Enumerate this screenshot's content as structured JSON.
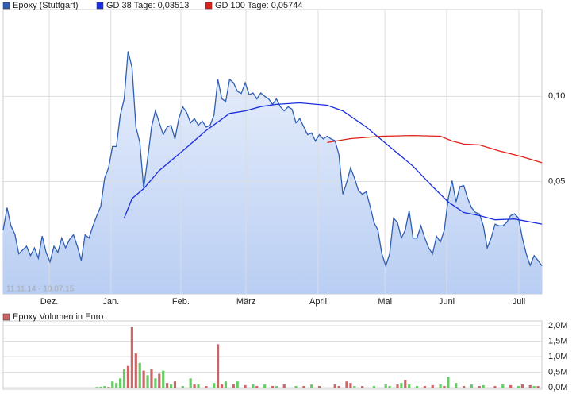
{
  "chart_data": [
    {
      "type": "line",
      "annotation": "11.11.14 - 10.07.15",
      "xlim": [
        0,
        138
      ],
      "xticks": [
        {
          "value": 11.8,
          "label": "Dez."
        },
        {
          "value": 27.6,
          "label": "Jan."
        },
        {
          "value": 45.5,
          "label": "Feb."
        },
        {
          "value": 62.2,
          "label": "März"
        },
        {
          "value": 80.7,
          "label": "April"
        },
        {
          "value": 97.8,
          "label": "Mai"
        },
        {
          "value": 113.6,
          "label": "Juni"
        },
        {
          "value": 132.1,
          "label": "Juli"
        }
      ],
      "ylim": [
        -0.016,
        0.151
      ],
      "yticks": [
        {
          "value": 0.05,
          "label": "0,05"
        },
        {
          "value": 0.1,
          "label": "0,10"
        }
      ],
      "grid": true,
      "series": [
        {
          "name": "Epoxy (Stuttgart)",
          "color": "#2f5fb3",
          "fill": true,
          "values": [
            0.0215,
            0.0346,
            0.024,
            0.019,
            0.0075,
            0.0098,
            0.012,
            0.0065,
            0.011,
            0.005,
            0.018,
            0.0084,
            0.0028,
            0.012,
            0.0084,
            0.0168,
            0.011,
            0.0159,
            0.0187,
            0.012,
            0.0037,
            0.0187,
            0.0168,
            0.024,
            0.03,
            0.0355,
            0.052,
            0.058,
            0.0706,
            0.0706,
            0.089,
            0.0985,
            0.1265,
            0.117,
            0.082,
            0.073,
            0.046,
            0.0636,
            0.082,
            0.0916,
            0.0845,
            0.0775,
            0.082,
            0.083,
            0.075,
            0.087,
            0.0939,
            0.0906,
            0.0845,
            0.087,
            0.083,
            0.0855,
            0.082,
            0.083,
            0.089,
            0.11,
            0.0986,
            0.097,
            0.11,
            0.108,
            0.103,
            0.1017,
            0.108,
            0.101,
            0.102,
            0.0985,
            0.102,
            0.1,
            0.0985,
            0.0953,
            0.0985,
            0.0939,
            0.0915,
            0.0939,
            0.0925,
            0.0845,
            0.087,
            0.082,
            0.0775,
            0.0785,
            0.0738,
            0.0775,
            0.075,
            0.0766,
            0.075,
            0.074,
            0.066,
            0.0425,
            0.0495,
            0.058,
            0.052,
            0.0448,
            0.0425,
            0.044,
            0.0355,
            0.026,
            0.0215,
            0.0075,
            0.0005,
            0.0075,
            0.0285,
            0.026,
            0.0168,
            0.0215,
            0.033,
            0.0168,
            0.0168,
            0.024,
            0.0168,
            0.011,
            0.0075,
            0.0178,
            0.0145,
            0.0215,
            0.04,
            0.0505,
            0.038,
            0.047,
            0.0476,
            0.04,
            0.0346,
            0.0318,
            0.031,
            0.024,
            0.011,
            0.0168,
            0.025,
            0.024,
            0.024,
            0.026,
            0.03,
            0.031,
            0.0285,
            0.0168,
            0.0075,
            0.0008,
            0.0065,
            0.0037,
            0.0005
          ]
        },
        {
          "name": "GD 38 Tage: 0,03513",
          "color": "#1a2de0",
          "x": [
            31,
            33,
            36,
            40,
            46,
            52,
            58,
            62,
            66,
            70,
            76,
            83,
            87,
            93,
            99,
            105,
            110,
            114,
            118,
            122,
            126,
            131,
            138
          ],
          "values": [
            0.0285,
            0.04,
            0.0458,
            0.0565,
            0.068,
            0.08,
            0.09,
            0.0915,
            0.094,
            0.0953,
            0.0962,
            0.0948,
            0.0915,
            0.082,
            0.0705,
            0.059,
            0.047,
            0.038,
            0.0318,
            0.03,
            0.0275,
            0.028,
            0.025
          ]
        },
        {
          "name": "GD 100 Tage: 0,05744",
          "color": "#e0201a",
          "x": [
            83,
            89,
            97,
            105,
            112,
            115,
            118,
            122,
            127,
            133,
            138
          ],
          "values": [
            0.0729,
            0.0752,
            0.0766,
            0.077,
            0.0766,
            0.0738,
            0.072,
            0.0715,
            0.068,
            0.0645,
            0.061
          ]
        }
      ]
    },
    {
      "type": "bar",
      "xlim": [
        0,
        138
      ],
      "ylim": [
        0,
        2000000
      ],
      "yticks": [
        {
          "value": 0,
          "label": "0,0M"
        },
        {
          "value": 500000,
          "label": "0,5M"
        },
        {
          "value": 1000000,
          "label": "1,0M"
        },
        {
          "value": 1500000,
          "label": "1,5M"
        },
        {
          "value": 2000000,
          "label": "2,0M"
        }
      ],
      "grid": true,
      "series": [
        {
          "name": "Epoxy Volumen in Euro",
          "color": "#cc6666",
          "x": [
            24,
            25,
            26,
            27,
            28,
            29,
            30,
            31,
            32,
            33,
            34,
            35,
            36,
            37,
            38,
            39,
            40,
            41,
            42,
            43,
            44,
            46,
            48,
            49,
            50,
            52,
            54,
            55,
            56,
            57,
            59,
            60,
            62,
            64,
            65,
            67,
            69,
            70,
            72,
            75,
            77,
            79,
            81,
            85,
            86,
            88,
            89,
            90,
            92,
            95,
            98,
            99,
            101,
            102,
            103,
            104,
            106,
            108,
            110,
            112,
            113,
            114,
            116,
            118,
            120,
            122,
            123,
            126,
            128,
            130,
            132,
            133,
            135,
            136,
            137
          ],
          "values": [
            20000,
            30000,
            50000,
            20000,
            200000,
            150000,
            300000,
            600000,
            700000,
            1950000,
            1100000,
            800000,
            550000,
            400000,
            600000,
            300000,
            450000,
            550000,
            150000,
            100000,
            200000,
            50000,
            300000,
            100000,
            100000,
            50000,
            150000,
            1400000,
            100000,
            200000,
            100000,
            200000,
            80000,
            100000,
            50000,
            100000,
            50000,
            50000,
            100000,
            50000,
            50000,
            100000,
            50000,
            100000,
            50000,
            200000,
            150000,
            50000,
            50000,
            50000,
            100000,
            50000,
            100000,
            150000,
            250000,
            100000,
            50000,
            50000,
            80000,
            100000,
            50000,
            350000,
            150000,
            50000,
            100000,
            50000,
            80000,
            50000,
            100000,
            80000,
            50000,
            100000,
            80000,
            50000,
            50000
          ],
          "bar_colors": [
            "#66cc66",
            "#66cc66",
            "#66cc66",
            "#cc6666",
            "#66cc66",
            "#66cc66",
            "#66cc66",
            "#66cc66",
            "#cc6666",
            "#cc6666",
            "#cc6666",
            "#66cc66",
            "#cc6666",
            "#66cc66",
            "#cc6666",
            "#66cc66",
            "#cc6666",
            "#66cc66",
            "#cc6666",
            "#66cc66",
            "#cc6666",
            "#66cc66",
            "#66cc66",
            "#cc6666",
            "#66cc66",
            "#cc6666",
            "#66cc66",
            "#cc6666",
            "#cc6666",
            "#66cc66",
            "#cc6666",
            "#66cc66",
            "#cc6666",
            "#66cc66",
            "#cc6666",
            "#66cc66",
            "#cc6666",
            "#66cc66",
            "#cc6666",
            "#66cc66",
            "#cc6666",
            "#66cc66",
            "#cc6666",
            "#cc6666",
            "#cc6666",
            "#cc6666",
            "#cc6666",
            "#66cc66",
            "#cc6666",
            "#66cc66",
            "#66cc66",
            "#66cc66",
            "#cc6666",
            "#66cc66",
            "#cc6666",
            "#66cc66",
            "#66cc66",
            "#cc6666",
            "#cc6666",
            "#66cc66",
            "#cc6666",
            "#66cc66",
            "#66cc66",
            "#cc6666",
            "#66cc66",
            "#cc6666",
            "#66cc66",
            "#cc6666",
            "#66cc66",
            "#cc6666",
            "#66cc66",
            "#cc6666",
            "#cc6666",
            "#66cc66",
            "#cc6666"
          ]
        }
      ]
    }
  ]
}
